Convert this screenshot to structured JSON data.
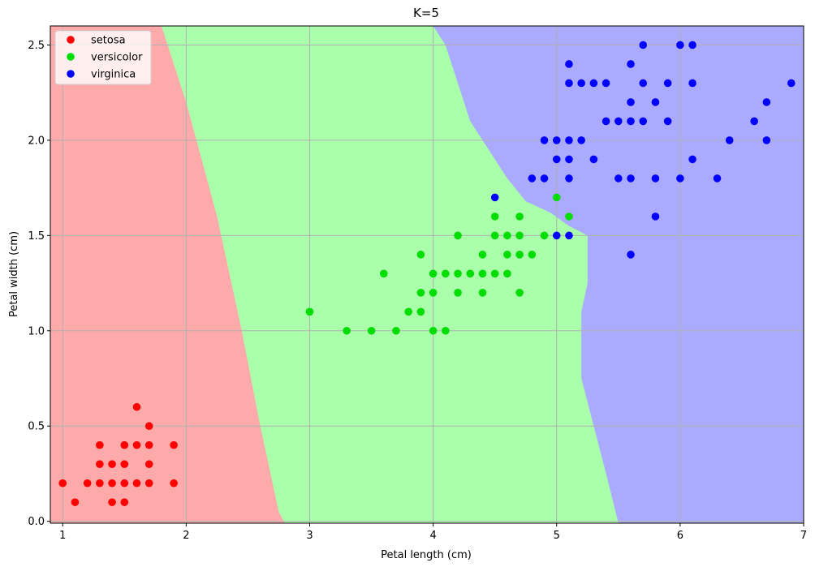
{
  "chart_data": {
    "type": "scatter",
    "title": "K=5",
    "xlabel": "Petal length (cm)",
    "ylabel": "Petal width (cm)",
    "xlim": [
      0.9,
      7.0
    ],
    "ylim": [
      -0.01,
      2.6
    ],
    "xticks": [
      1,
      2,
      3,
      4,
      5,
      6,
      7
    ],
    "xtick_labels": [
      "1",
      "2",
      "3",
      "4",
      "5",
      "6",
      "7"
    ],
    "yticks": [
      0.0,
      0.5,
      1.0,
      1.5,
      2.0,
      2.5
    ],
    "ytick_labels": [
      "0.0",
      "0.5",
      "1.0",
      "1.5",
      "2.0",
      "2.5"
    ],
    "grid": true,
    "legend_position": "top-left",
    "regions": [
      {
        "class": "setosa",
        "color": "#ffaaaa"
      },
      {
        "class": "versicolor",
        "color": "#aaffaa"
      },
      {
        "class": "virginica",
        "color": "#aaaaff"
      }
    ],
    "boundaries": {
      "setosa_versicolor": [
        [
          1.8,
          2.6
        ],
        [
          2.0,
          2.2
        ],
        [
          2.25,
          1.6
        ],
        [
          2.45,
          1.0
        ],
        [
          2.6,
          0.5
        ],
        [
          2.75,
          0.05
        ],
        [
          2.8,
          -0.01
        ]
      ],
      "versicolor_virginica": [
        [
          4.0,
          2.6
        ],
        [
          4.1,
          2.5
        ],
        [
          4.3,
          2.1
        ],
        [
          4.6,
          1.8
        ],
        [
          4.75,
          1.68
        ],
        [
          4.95,
          1.62
        ],
        [
          5.1,
          1.55
        ],
        [
          5.25,
          1.5
        ],
        [
          5.25,
          1.25
        ],
        [
          5.2,
          1.1
        ],
        [
          5.2,
          0.75
        ],
        [
          5.3,
          0.5
        ],
        [
          5.4,
          0.25
        ],
        [
          5.5,
          -0.01
        ]
      ]
    },
    "series": [
      {
        "name": "setosa",
        "color": "#ff0000",
        "points": [
          [
            1.0,
            0.2
          ],
          [
            1.1,
            0.1
          ],
          [
            1.2,
            0.2
          ],
          [
            1.3,
            0.2
          ],
          [
            1.3,
            0.3
          ],
          [
            1.3,
            0.4
          ],
          [
            1.4,
            0.1
          ],
          [
            1.4,
            0.2
          ],
          [
            1.4,
            0.3
          ],
          [
            1.5,
            0.1
          ],
          [
            1.5,
            0.2
          ],
          [
            1.5,
            0.3
          ],
          [
            1.5,
            0.4
          ],
          [
            1.6,
            0.2
          ],
          [
            1.6,
            0.4
          ],
          [
            1.6,
            0.6
          ],
          [
            1.7,
            0.2
          ],
          [
            1.7,
            0.3
          ],
          [
            1.7,
            0.4
          ],
          [
            1.7,
            0.5
          ],
          [
            1.9,
            0.2
          ],
          [
            1.9,
            0.4
          ]
        ]
      },
      {
        "name": "versicolor",
        "color": "#00dd00",
        "points": [
          [
            3.0,
            1.1
          ],
          [
            3.3,
            1.0
          ],
          [
            3.5,
            1.0
          ],
          [
            3.6,
            1.3
          ],
          [
            3.7,
            1.0
          ],
          [
            3.8,
            1.1
          ],
          [
            3.9,
            1.1
          ],
          [
            3.9,
            1.2
          ],
          [
            3.9,
            1.4
          ],
          [
            4.0,
            1.0
          ],
          [
            4.0,
            1.2
          ],
          [
            4.0,
            1.3
          ],
          [
            4.1,
            1.0
          ],
          [
            4.1,
            1.3
          ],
          [
            4.2,
            1.2
          ],
          [
            4.2,
            1.3
          ],
          [
            4.2,
            1.5
          ],
          [
            4.3,
            1.3
          ],
          [
            4.4,
            1.2
          ],
          [
            4.4,
            1.3
          ],
          [
            4.4,
            1.4
          ],
          [
            4.5,
            1.3
          ],
          [
            4.5,
            1.5
          ],
          [
            4.5,
            1.6
          ],
          [
            4.6,
            1.3
          ],
          [
            4.6,
            1.4
          ],
          [
            4.6,
            1.5
          ],
          [
            4.7,
            1.2
          ],
          [
            4.7,
            1.4
          ],
          [
            4.7,
            1.5
          ],
          [
            4.7,
            1.6
          ],
          [
            4.8,
            1.4
          ],
          [
            4.9,
            1.5
          ],
          [
            5.0,
            1.7
          ],
          [
            5.1,
            1.6
          ]
        ]
      },
      {
        "name": "virginica",
        "color": "#0000ff",
        "points": [
          [
            4.5,
            1.7
          ],
          [
            4.8,
            1.8
          ],
          [
            4.9,
            1.8
          ],
          [
            4.9,
            2.0
          ],
          [
            5.0,
            1.5
          ],
          [
            5.0,
            1.9
          ],
          [
            5.0,
            2.0
          ],
          [
            5.1,
            1.5
          ],
          [
            5.1,
            1.8
          ],
          [
            5.1,
            1.9
          ],
          [
            5.1,
            2.0
          ],
          [
            5.1,
            2.3
          ],
          [
            5.1,
            2.4
          ],
          [
            5.2,
            2.0
          ],
          [
            5.2,
            2.3
          ],
          [
            5.3,
            1.9
          ],
          [
            5.3,
            2.3
          ],
          [
            5.4,
            2.1
          ],
          [
            5.4,
            2.3
          ],
          [
            5.5,
            1.8
          ],
          [
            5.5,
            2.1
          ],
          [
            5.6,
            1.4
          ],
          [
            5.6,
            1.8
          ],
          [
            5.6,
            2.1
          ],
          [
            5.6,
            2.2
          ],
          [
            5.6,
            2.4
          ],
          [
            5.7,
            2.1
          ],
          [
            5.7,
            2.3
          ],
          [
            5.7,
            2.5
          ],
          [
            5.8,
            1.6
          ],
          [
            5.8,
            1.8
          ],
          [
            5.8,
            2.2
          ],
          [
            5.9,
            2.1
          ],
          [
            5.9,
            2.3
          ],
          [
            6.0,
            1.8
          ],
          [
            6.0,
            2.5
          ],
          [
            6.1,
            1.9
          ],
          [
            6.1,
            2.3
          ],
          [
            6.1,
            2.5
          ],
          [
            6.3,
            1.8
          ],
          [
            6.4,
            2.0
          ],
          [
            6.6,
            2.1
          ],
          [
            6.7,
            2.0
          ],
          [
            6.7,
            2.2
          ],
          [
            6.9,
            2.3
          ]
        ]
      }
    ]
  }
}
